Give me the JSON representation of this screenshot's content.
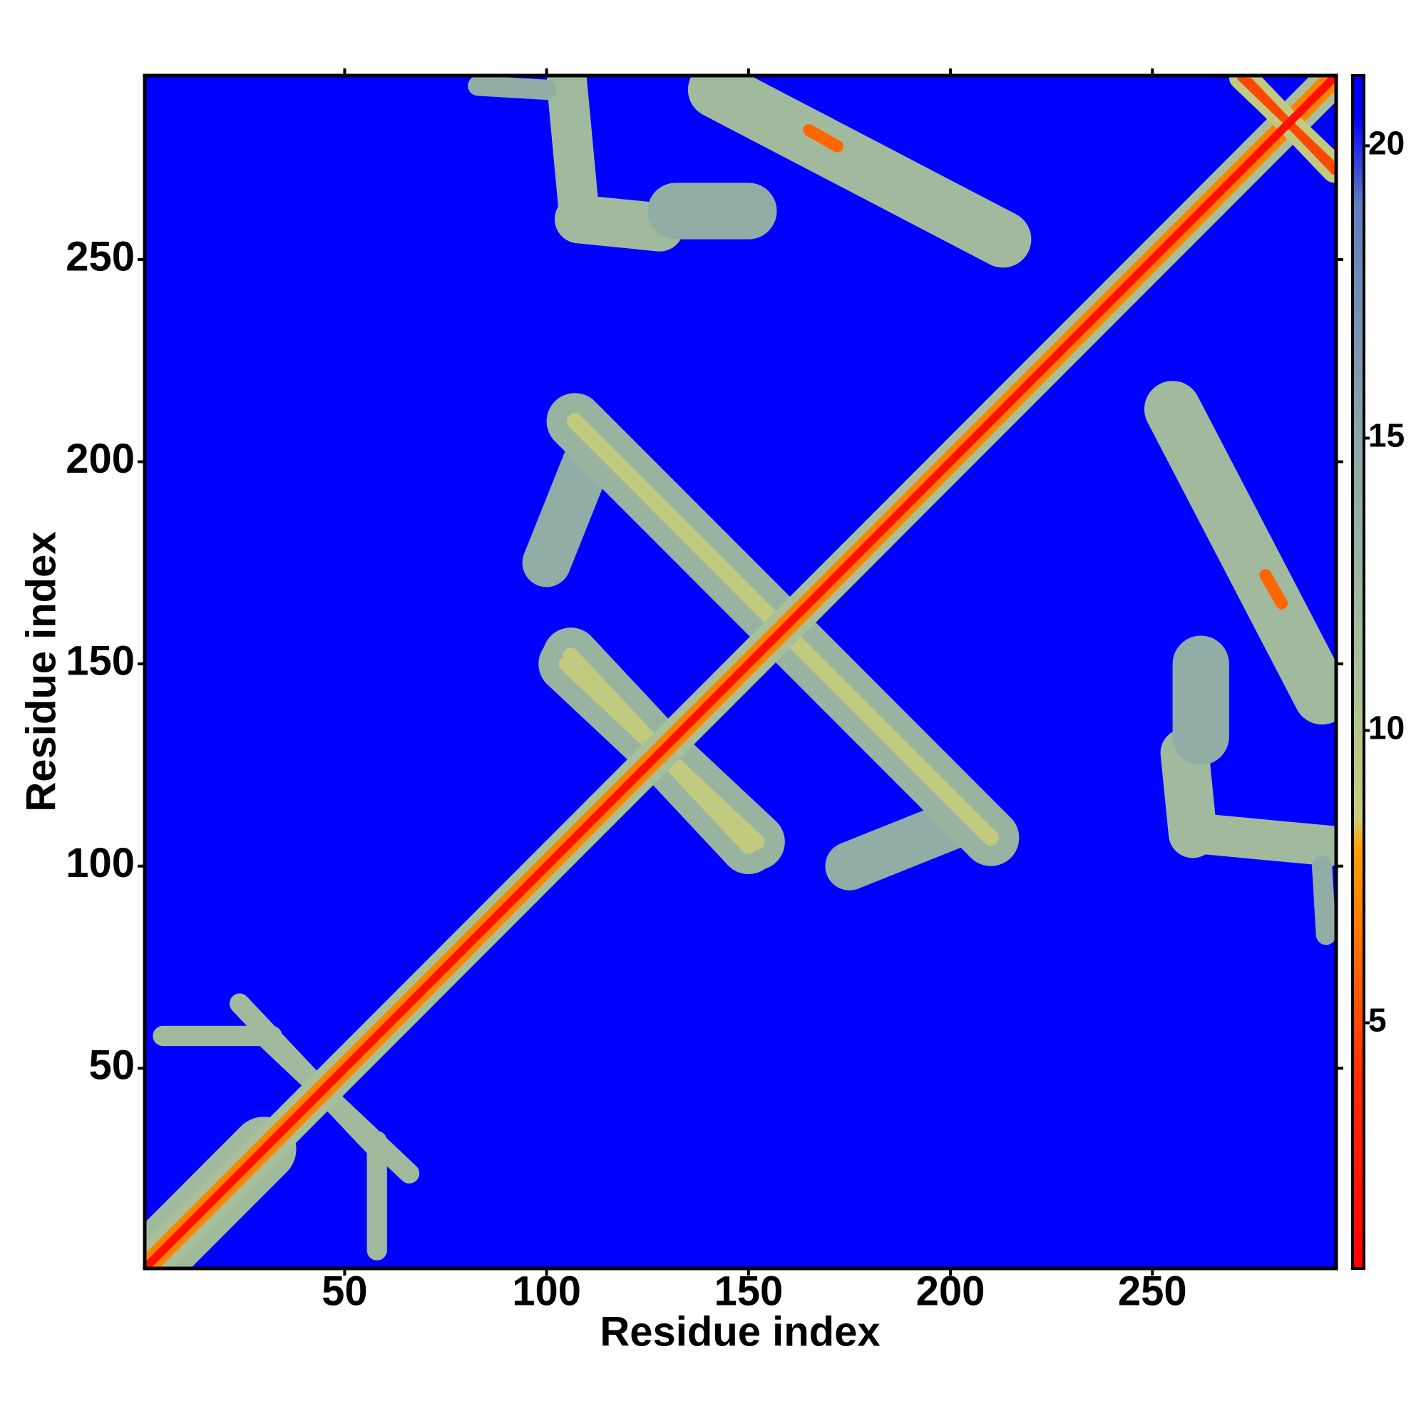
{
  "chart_data": {
    "type": "heatmap",
    "x_label": "Residue index",
    "y_label": "Residue index",
    "xlim": [
      0.5,
      295.5
    ],
    "ylim": [
      0.5,
      295.5
    ],
    "xticks": [
      50,
      100,
      150,
      200,
      250
    ],
    "yticks": [
      50,
      100,
      150,
      200,
      250
    ],
    "clim": [
      0.8,
      21.2
    ],
    "cticks": [
      5,
      10,
      15,
      20
    ],
    "colormap": [
      {
        "value": 0.8,
        "color": "#ff0000"
      },
      {
        "value": 4,
        "color": "#ff2a00"
      },
      {
        "value": 8,
        "color": "#ffa000"
      },
      {
        "value": 8.5,
        "color": "#c8cc78"
      },
      {
        "value": 11,
        "color": "#a8c09a"
      },
      {
        "value": 15,
        "color": "#8aa6a8"
      },
      {
        "value": 19,
        "color": "#5e7fc0"
      },
      {
        "value": 20.5,
        "color": "#0000ff"
      }
    ],
    "symmetric": true,
    "features": [
      {
        "x": [
          4,
          30
        ],
        "y": [
          4,
          30
        ],
        "width": 16,
        "value": 12
      },
      {
        "x": [
          5,
          32
        ],
        "y": [
          58,
          58
        ],
        "width": 5,
        "value": 12
      },
      {
        "x": [
          30,
          66
        ],
        "y": [
          58,
          24
        ],
        "width": 5,
        "value": 12
      },
      {
        "x": [
          100,
          112
        ],
        "y": [
          175,
          205
        ],
        "width": 12,
        "value": 14
      },
      {
        "x": [
          107,
          157
        ],
        "y": [
          210,
          160
        ],
        "width": 14,
        "value": 13
      },
      {
        "x": [
          107,
          157
        ],
        "y": [
          210,
          160
        ],
        "width": 4,
        "value": 9
      },
      {
        "x": [
          105,
          152
        ],
        "y": [
          150,
          106
        ],
        "width": 14,
        "value": 13
      },
      {
        "x": [
          105,
          152
        ],
        "y": [
          150,
          106
        ],
        "width": 4,
        "value": 9
      },
      {
        "x": [
          105,
          108
        ],
        "y": [
          294,
          262
        ],
        "width": 10,
        "value": 12
      },
      {
        "x": [
          108,
          128
        ],
        "y": [
          260,
          258
        ],
        "width": 12,
        "value": 12
      },
      {
        "x": [
          83,
          100
        ],
        "y": [
          293,
          292
        ],
        "width": 5,
        "value": 14
      },
      {
        "x": [
          132,
          150
        ],
        "y": [
          262,
          262
        ],
        "width": 14,
        "value": 14
      },
      {
        "x": [
          142,
          213
        ],
        "y": [
          292,
          255
        ],
        "width": 14,
        "value": 12
      },
      {
        "x": [
          165,
          172
        ],
        "y": [
          282,
          278
        ],
        "width": 3,
        "value": 6
      },
      {
        "x": [
          1,
          295
        ],
        "y": [
          1,
          295
        ],
        "width": 9,
        "value": 11
      },
      {
        "x": [
          1,
          295
        ],
        "y": [
          1,
          295
        ],
        "width": 5,
        "value": 7
      },
      {
        "x": [
          274,
          295
        ],
        "y": [
          294,
          272
        ],
        "width": 6,
        "value": 9
      },
      {
        "x": [
          274,
          295
        ],
        "y": [
          294,
          272
        ],
        "width": 2,
        "value": 5
      },
      {
        "x": [
          1,
          295
        ],
        "y": [
          1,
          295
        ],
        "width": 2,
        "value": 2
      }
    ]
  }
}
